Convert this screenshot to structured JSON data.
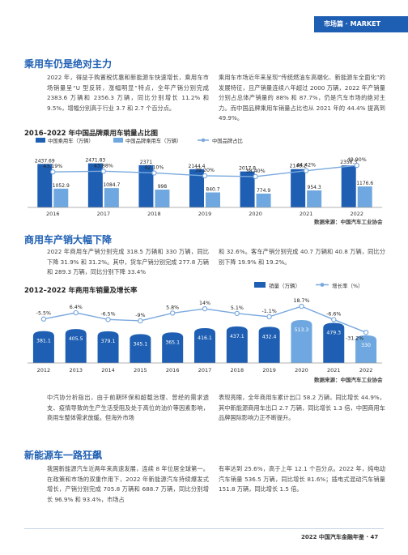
{
  "header": {
    "badge": "市场篇 · MARKET"
  },
  "section1": {
    "title": "乘用车仍是绝对主力",
    "para_left": "2022 年，得益于购置税优惠和新能源车快速增长，乘用车市场销量呈“U 型反转，涨幅明显”特点，全年产销分别完成 2383.6 万辆和 2356.3 万辆，同比分别增长 11.2% 和 9.5%，增幅分别高于行业 3.7 和 2.7 个百分点。",
    "para_right": "乘用车市场近年来呈现“传统燃油车高端化、新能源车全面化”的发展特征，且产销量连续八年超过 2000 万辆，2022 年产销量分别占总体产销量的 88% 和 87.7%，仍是汽车市场的绝对主力。而中国品牌乘用车销量占比也从 2021 年的 44.4% 提高到 49.9%。"
  },
  "chart1": {
    "title": "2016–2022 年中国品牌乘用车销量占比图",
    "source": "数据来源：中国汽车工业协会",
    "legend": [
      "中国乘用车（万辆）",
      "中国品牌乘用车（万辆）",
      "中国品牌占比"
    ],
    "colors": {
      "primary": "#1e5fb3",
      "secondary": "#6fa8e0",
      "line": "#7aa9de"
    }
  },
  "section2": {
    "title": "商用车产销大幅下降",
    "para_left": "2022 年商用车产销分别完成 318.5 万辆和 330 万辆，同比下降 31.9% 和 31.2%。其中，货车产销分别完成 277.8 万辆和 289.3 万辆，同比分别下降 33.4%",
    "para_right": "和 32.6%。客车产销分别完成 40.7 万辆和 40.8 万辆，同比分别下降 19.9% 和 19.2%。"
  },
  "chart2": {
    "title": "2012–2022 年商用车销量及增长率",
    "source": "数据来源：中国汽车工业协会",
    "legend": [
      "销量（万辆）",
      "增长率（%）"
    ]
  },
  "section2b": {
    "para_left": "中汽协分析指出，由于前期环保和超载治理、曾经的需求透支、疫情导致的生产生活受阻及处于高位的油价等因素影响，商用车整体需求放缓。但海外市场",
    "para_right": "表现亮眼，全年商用车累计出口 58.2 万辆，同比增长 44.9%，其中新能源商用车出口 2.7 万辆，同比增长 1.3 倍，中国商用车品牌国际影响力正不断提升。"
  },
  "section3": {
    "title": "新能源车一路狂飙",
    "para_left": "我国新能源汽车近两年来高速发展，连续 8 年位居全球第一。在政策和市场的双重作用下，2022 年新能源汽车持续爆发式增长，产销分别完成 705.8 万辆和 688.7 万辆，同比分别增长 96.9% 和 93.4%，市场占",
    "para_right": "有率达到 25.6%，高于上年 12.1 个百分点。2022 年，纯电动汽车销量 536.5 万辆，同比增长 81.6%；插电式混动汽车销量 151.8 万辆，同比增长 1.5 倍。"
  },
  "footer": {
    "text": "2022 中国汽车金融年鉴 · 47"
  },
  "chart_data": [
    {
      "type": "bar",
      "title": "2016–2022 年中国品牌乘用车销量占比图",
      "categories": [
        "2016",
        "2017",
        "2018",
        "2019",
        "2020",
        "2021",
        "2022"
      ],
      "series": [
        {
          "name": "中国乘用车（万辆）",
          "values": [
            2437.69,
            2471.83,
            2371,
            2144.4,
            2017.8,
            2148.2,
            2356.3
          ]
        },
        {
          "name": "中国品牌乘用车（万辆）",
          "values": [
            1052.9,
            1084.7,
            998,
            840.7,
            774.9,
            954.3,
            1176.6
          ]
        },
        {
          "name": "中国品牌占比",
          "type": "line",
          "values": [
            43.19,
            43.88,
            42.1,
            39.2,
            38.4,
            44.42,
            49.9
          ],
          "labels": [
            "43.19%",
            "43.88%",
            "42.10%",
            "39.20%",
            "38.40%",
            "44.42%",
            "49.90%"
          ]
        }
      ],
      "bar_labels_a": [
        "2437.69",
        "2471.83",
        "2371",
        "2144.4",
        "2017.8",
        "2148.2",
        "2356.3"
      ],
      "bar_labels_b": [
        "1052.9",
        "1084.7",
        "998",
        "840.7",
        "774.9",
        "954.3",
        "1176.6"
      ],
      "ylim": [
        0,
        3000
      ],
      "line_ylim": [
        30,
        55
      ],
      "legend_position": "top"
    },
    {
      "type": "bar",
      "title": "2012–2022 年商用车销量及增长率",
      "categories": [
        "2012",
        "2013",
        "2014",
        "2015",
        "2016",
        "2017",
        "2018",
        "2019",
        "2020",
        "2021",
        "2022"
      ],
      "series": [
        {
          "name": "销量（万辆）",
          "values": [
            381.1,
            405.5,
            379.1,
            345.1,
            365.1,
            416.1,
            437.1,
            432.4,
            513.3,
            479.3,
            330
          ]
        },
        {
          "name": "增长率（%）",
          "type": "line",
          "values": [
            -5.5,
            6.4,
            -6.5,
            -9,
            5.8,
            14,
            5.1,
            -1.1,
            18.7,
            -6.6,
            -31.2
          ],
          "labels": [
            "-5.5%",
            "6.4%",
            "-6.5%",
            "-9%",
            "5.8%",
            "14%",
            "5.1%",
            "-1.1%",
            "18.7%",
            "-6.6%",
            "-31.2%"
          ]
        }
      ],
      "bar_labels": [
        "381.1",
        "405.5",
        "379.1",
        "345.1",
        "365.1",
        "416.1",
        "437.1",
        "432.4",
        "513.3",
        "479.3",
        "330"
      ],
      "ylim": [
        0,
        600
      ],
      "line_ylim": [
        -40,
        25
      ],
      "legend_position": "top-right"
    }
  ]
}
